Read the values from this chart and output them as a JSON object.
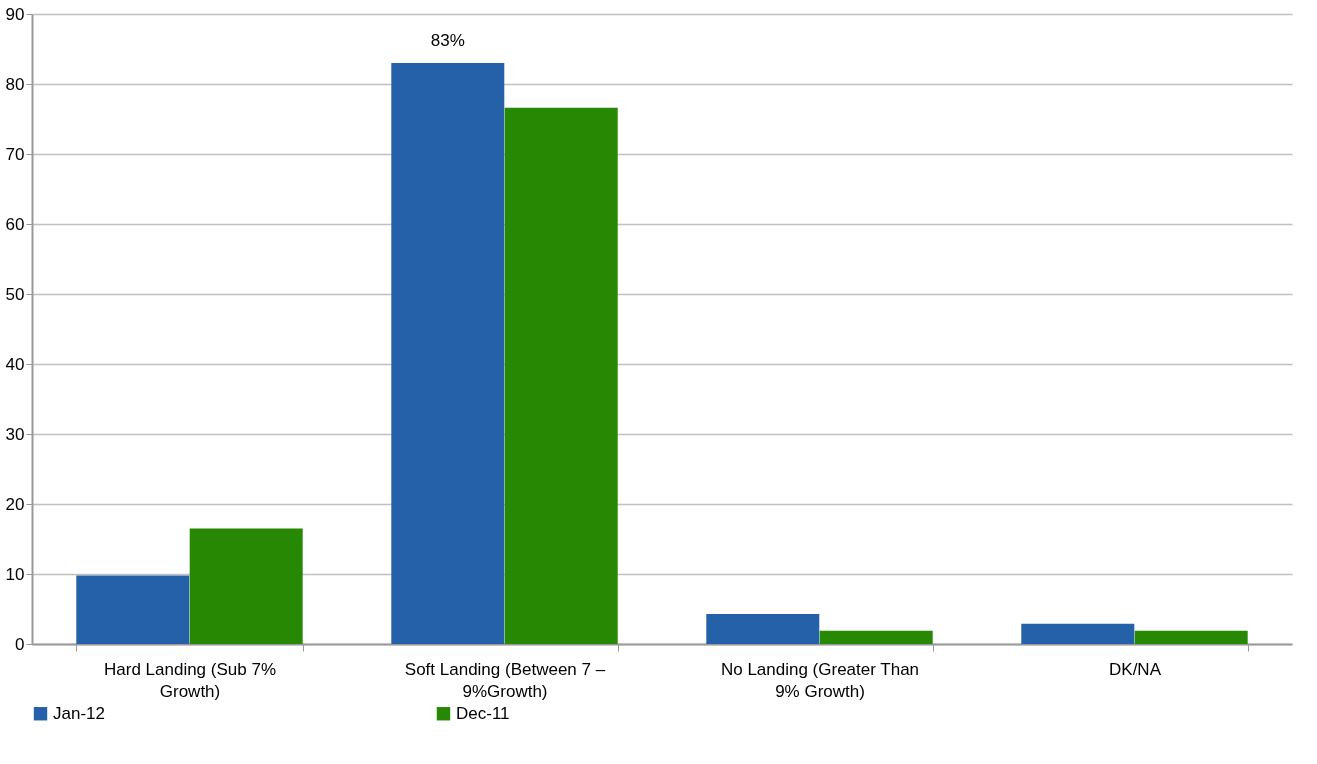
{
  "chart_data": {
    "type": "bar",
    "categories": [
      "Hard Landing (Sub 7% Growth)",
      "Soft Landing (Between 7 – 9%Growth)",
      "No Landing (Greater Than 9% Growth)",
      "DK/NA"
    ],
    "series": [
      {
        "name": "Jan-12",
        "color": "#2461a8",
        "values": [
          9.8,
          83,
          4.3,
          2.9
        ],
        "value_labels": [
          null,
          "83%",
          null,
          null
        ]
      },
      {
        "name": "Dec-11",
        "color": "#278803",
        "values": [
          16.5,
          76.6,
          1.9,
          1.9
        ]
      }
    ],
    "ylim": [
      0,
      90
    ],
    "yticks": [
      0,
      10,
      20,
      30,
      40,
      50,
      60,
      70,
      80,
      90
    ],
    "grid": "y",
    "legend": "bottom"
  }
}
